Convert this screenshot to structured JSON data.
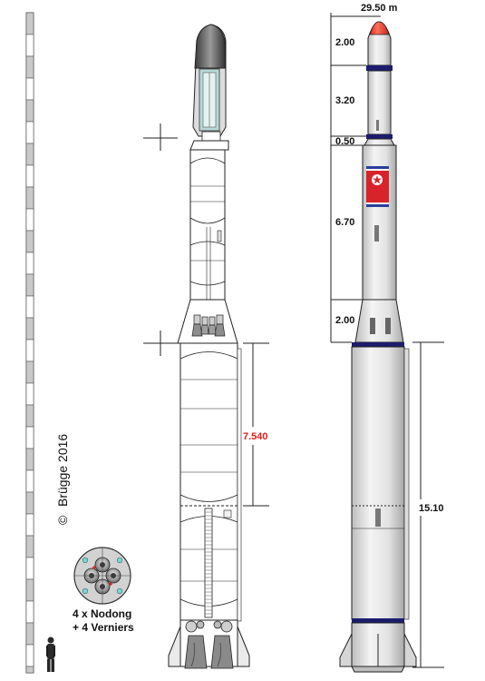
{
  "credit": "Brügge 2016",
  "copyright_symbol": "©",
  "dimensions": {
    "total_height": "29.50 m",
    "segments": [
      "2.00",
      "3.20",
      "0.50",
      "6.70",
      "2.00"
    ],
    "first_stage": "15.10",
    "tank_length": "7.540"
  },
  "engine_caption": {
    "line1": "4 x Nodong",
    "line2": "+ 4 Verniers"
  },
  "colors": {
    "band": "#1c1c6e",
    "nose_tip": "#e53a2c",
    "measure_red": "#e0201c",
    "flag_blue": "#2a3f9a",
    "flag_red": "#d8232a"
  },
  "icons": {
    "copyright": "copyright-icon",
    "human_scale": "person-figure-icon",
    "engine_cluster": "engine-cluster-icon",
    "flag": "dprk-flag-icon"
  }
}
